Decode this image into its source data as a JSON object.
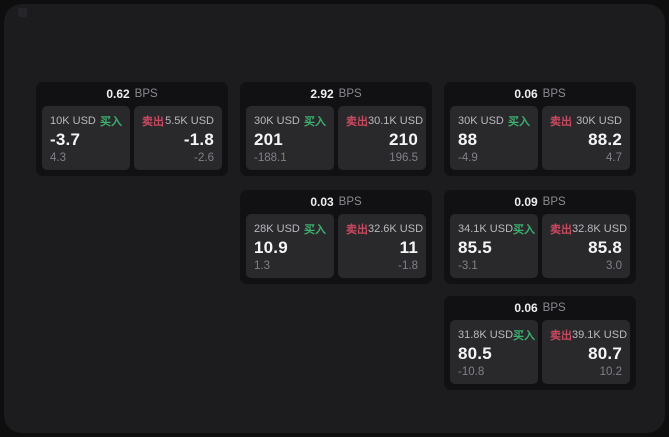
{
  "colors": {
    "page_bg": "#0e0e0f",
    "frame_bg": "#1c1c1e",
    "card_bg": "#111113",
    "panel_bg": "#29292c",
    "buy_green": "#3cae6e",
    "sell_red": "#c9485f"
  },
  "labels": {
    "bps": "BPS",
    "buy": "买入",
    "sell": "卖出"
  },
  "cards": [
    {
      "bps": "0.62",
      "buy_amount": "10K USD",
      "buy_value": "-3.7",
      "buy_sub": "4.3",
      "sell_amount": "5.5K USD",
      "sell_value": "-1.8",
      "sell_sub": "-2.6"
    },
    {
      "bps": "2.92",
      "buy_amount": "30K USD",
      "buy_value": "201",
      "buy_sub": "-188.1",
      "sell_amount": "30.1K USD",
      "sell_value": "210",
      "sell_sub": "196.5"
    },
    {
      "bps": "0.06",
      "buy_amount": "30K USD",
      "buy_value": "88",
      "buy_sub": "-4.9",
      "sell_amount": "30K USD",
      "sell_value": "88.2",
      "sell_sub": "4.7"
    },
    {
      "bps": "0.03",
      "buy_amount": "28K USD",
      "buy_value": "10.9",
      "buy_sub": "1.3",
      "sell_amount": "32.6K USD",
      "sell_value": "11",
      "sell_sub": "-1.8"
    },
    {
      "bps": "0.09",
      "buy_amount": "34.1K USD",
      "buy_value": "85.5",
      "buy_sub": "-3.1",
      "sell_amount": "32.8K USD",
      "sell_value": "85.8",
      "sell_sub": "3.0"
    },
    {
      "bps": "0.06",
      "buy_amount": "31.8K USD",
      "buy_value": "80.5",
      "buy_sub": "-10.8",
      "sell_amount": "39.1K USD",
      "sell_value": "80.7",
      "sell_sub": "10.2"
    }
  ]
}
